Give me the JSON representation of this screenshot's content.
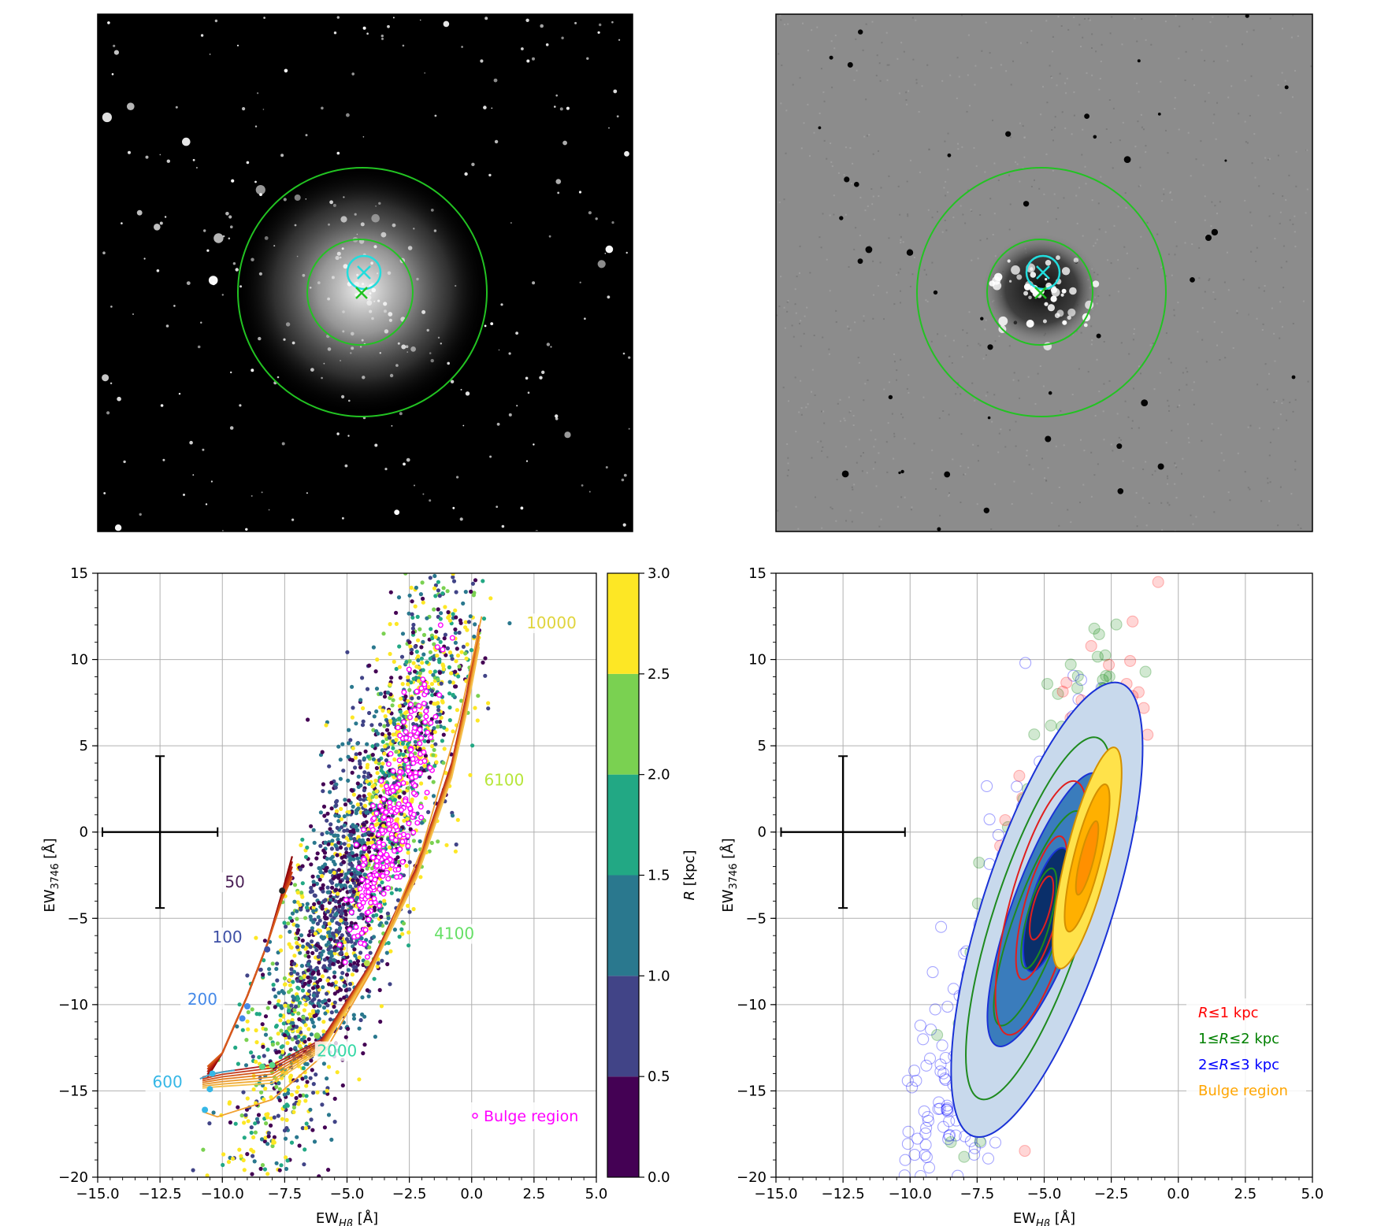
{
  "figure": {
    "panels": [
      "galaxy-image",
      "residual-image",
      "scatter-colored",
      "density-contours"
    ]
  },
  "images": [
    {
      "name": "galaxy-image",
      "description_visible": "optical image of galaxy with surrounding stars",
      "overlays": {
        "circle_colors": [
          "#22c322",
          "#22c322",
          "#22dddd"
        ],
        "marker_colors": [
          "#22dddd",
          "#22c322"
        ]
      }
    },
    {
      "name": "residual-image",
      "overlays": {
        "circle_colors": [
          "#22c322",
          "#22c322",
          "#22dddd"
        ],
        "marker_colors": [
          "#22dddd",
          "#22c322"
        ]
      }
    }
  ],
  "chart_data": [
    {
      "type": "scatter",
      "xlabel_main": "EW",
      "xlabel_sub": "Hβ",
      "xlabel_unit": " [Å]",
      "ylabel_main": "EW",
      "ylabel_sub": "3746",
      "ylabel_unit": " [Å]",
      "xlim": [
        -15,
        5
      ],
      "ylim": [
        -20,
        15
      ],
      "xticks": [
        -15,
        -12.5,
        -10,
        -7.5,
        -5,
        -2.5,
        0,
        2.5,
        5
      ],
      "xtick_labels": [
        "−15.0",
        "−12.5",
        "−10.0",
        "−7.5",
        "−5.0",
        "−2.5",
        "0.0",
        "2.5",
        "5.0"
      ],
      "yticks": [
        15,
        10,
        5,
        0,
        -5,
        -10,
        -15,
        -20
      ],
      "ytick_labels": [
        "15",
        "10",
        "5",
        "0",
        "−5",
        "−10",
        "−15",
        "−20"
      ],
      "grid": true,
      "colorbar": {
        "label_main": "R",
        "label_unit": " [kpc]",
        "ticks": [
          "0.0",
          "0.5",
          "1.0",
          "1.5",
          "2.0",
          "2.5",
          "3.0"
        ],
        "colors": [
          "#440154",
          "#414487",
          "#2a788e",
          "#22a884",
          "#7ad151",
          "#fde725"
        ]
      },
      "errorbar": {
        "x": -12.5,
        "y": 0,
        "xerr": 2.2,
        "yerr": 4.4
      },
      "track_labels": [
        {
          "text": "50",
          "x": -9.5,
          "y": -3.2,
          "color": "#4a1f55"
        },
        {
          "text": "100",
          "x": -9.8,
          "y": -6.4,
          "color": "#3d4fa5"
        },
        {
          "text": "200",
          "x": -10.8,
          "y": -10.0,
          "color": "#4589e8"
        },
        {
          "text": "600",
          "x": -12.2,
          "y": -14.8,
          "color": "#35b7e6"
        },
        {
          "text": "2000",
          "x": -5.4,
          "y": -13.0,
          "color": "#35d8a6"
        },
        {
          "text": "4100",
          "x": -0.7,
          "y": -6.2,
          "color": "#66e066"
        },
        {
          "text": "6100",
          "x": 1.3,
          "y": 2.7,
          "color": "#b7e63a"
        },
        {
          "text": "10000",
          "x": 3.2,
          "y": 11.8,
          "color": "#e0d43c"
        }
      ],
      "legend": {
        "label": "Bulge region",
        "marker_color": "#ff00ff",
        "position": "lower right"
      }
    },
    {
      "type": "scatter",
      "xlabel_main": "EW",
      "xlabel_sub": "Hβ",
      "xlabel_unit": " [Å]",
      "ylabel_main": "EW",
      "ylabel_sub": "3746",
      "ylabel_unit": " [Å]",
      "xlim": [
        -15,
        5
      ],
      "ylim": [
        -20,
        15
      ],
      "xticks": [
        -15,
        -12.5,
        -10,
        -7.5,
        -5,
        -2.5,
        0,
        2.5,
        5
      ],
      "xtick_labels": [
        "−15.0",
        "−12.5",
        "−10.0",
        "−7.5",
        "−5.0",
        "−2.5",
        "0.0",
        "2.5",
        "5.0"
      ],
      "yticks": [
        15,
        10,
        5,
        0,
        -5,
        -10,
        -15,
        -20
      ],
      "ytick_labels": [
        "15",
        "10",
        "5",
        "0",
        "−5",
        "−10",
        "−15",
        "−20"
      ],
      "grid": true,
      "errorbar": {
        "x": -12.5,
        "y": 0,
        "xerr": 2.2,
        "yerr": 4.4
      },
      "legend": {
        "position": "lower right",
        "entries": [
          {
            "text_main": "R",
            "text_rest": "≤1 kpc",
            "prefix": "",
            "color": "#ff0000"
          },
          {
            "text_main": "R",
            "text_rest": "≤2 kpc",
            "prefix": "1≤",
            "color": "#008000"
          },
          {
            "text_main": "R",
            "text_rest": "≤3 kpc",
            "prefix": "2≤",
            "color": "#0000ff"
          },
          {
            "text_main": "",
            "text_rest": "Bulge region",
            "prefix": "",
            "color": "#ffa500"
          }
        ]
      },
      "contours": [
        {
          "group": "blue",
          "center": [
            -4.9,
            -4.5
          ],
          "levels": [
            {
              "w": 2.4,
              "h": 13.8,
              "angle": 18,
              "fill": "#c8d9ec"
            },
            {
              "w": 1.3,
              "h": 8.4,
              "angle": 20,
              "fill": "#3a7cbc"
            },
            {
              "w": 0.65,
              "h": 3.7,
              "angle": 15,
              "fill": "#0a2f6a"
            }
          ]
        },
        {
          "group": "green",
          "center": [
            -5.2,
            -5.0
          ],
          "levels": [
            {
              "w": 1.7,
              "h": 11.0,
              "angle": 18
            },
            {
              "w": 0.9,
              "h": 6.6,
              "angle": 20
            },
            {
              "w": 0.45,
              "h": 3.0,
              "angle": 15
            }
          ]
        },
        {
          "group": "red",
          "center": [
            -5.1,
            -4.4
          ],
          "levels": [
            {
              "w": 1.2,
              "h": 7.6,
              "angle": 15
            },
            {
              "w": 0.65,
              "h": 4.3,
              "angle": 15
            },
            {
              "w": 0.32,
              "h": 1.9,
              "angle": 15
            }
          ]
        },
        {
          "group": "orange",
          "center": [
            -3.4,
            -1.5
          ],
          "levels": [
            {
              "w": 0.8,
              "h": 6.6,
              "angle": 14,
              "fill": "#ffe24a"
            },
            {
              "w": 0.5,
              "h": 4.4,
              "angle": 14,
              "fill": "#ffb000"
            },
            {
              "w": 0.25,
              "h": 2.2,
              "angle": 14,
              "fill": "#ff9000"
            }
          ]
        }
      ]
    }
  ]
}
